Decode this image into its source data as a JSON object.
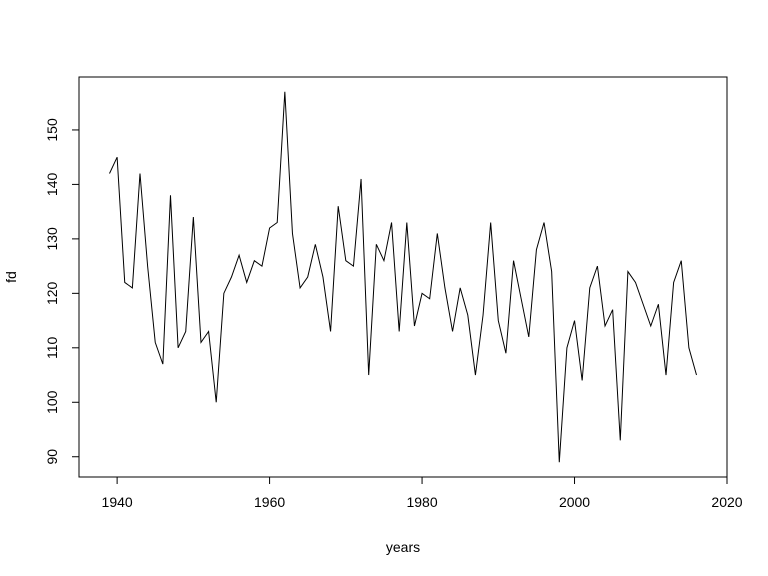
{
  "chart_data": {
    "type": "line",
    "x_label": "years",
    "y_label": "fd",
    "color": "#000000",
    "x": [
      1939,
      1940,
      1941,
      1942,
      1943,
      1944,
      1945,
      1946,
      1947,
      1948,
      1949,
      1950,
      1951,
      1952,
      1953,
      1954,
      1955,
      1956,
      1957,
      1958,
      1959,
      1960,
      1961,
      1962,
      1963,
      1964,
      1965,
      1966,
      1967,
      1968,
      1969,
      1970,
      1971,
      1972,
      1973,
      1974,
      1975,
      1976,
      1977,
      1978,
      1979,
      1980,
      1981,
      1982,
      1983,
      1984,
      1985,
      1986,
      1987,
      1988,
      1989,
      1990,
      1991,
      1992,
      1993,
      1994,
      1995,
      1996,
      1997,
      1998,
      1999,
      2000,
      2001,
      2002,
      2003,
      2004,
      2005,
      2006,
      2007,
      2008,
      2009,
      2010,
      2011,
      2012,
      2013,
      2014,
      2015,
      2016
    ],
    "values": [
      142,
      145,
      122,
      121,
      142,
      125,
      111,
      107,
      138,
      110,
      113,
      134,
      111,
      113,
      100,
      120,
      123,
      127,
      122,
      126,
      125,
      132,
      133,
      157,
      131,
      121,
      123,
      129,
      123,
      113,
      136,
      126,
      125,
      141,
      105,
      129,
      126,
      133,
      113,
      133,
      114,
      120,
      119,
      131,
      121,
      113,
      121,
      116,
      105,
      116,
      133,
      115,
      109,
      126,
      119,
      112,
      128,
      133,
      124,
      89,
      110,
      115,
      104,
      121,
      125,
      114,
      117,
      93,
      124,
      122,
      118,
      114,
      118,
      105,
      122,
      126,
      110,
      105
    ],
    "xlim": [
      1935,
      2020
    ],
    "ylim": [
      86.28,
      159.72
    ],
    "xticks": [
      1940,
      1960,
      1980,
      2000,
      2020
    ],
    "yticks": [
      90,
      100,
      110,
      120,
      130,
      140,
      150
    ]
  }
}
